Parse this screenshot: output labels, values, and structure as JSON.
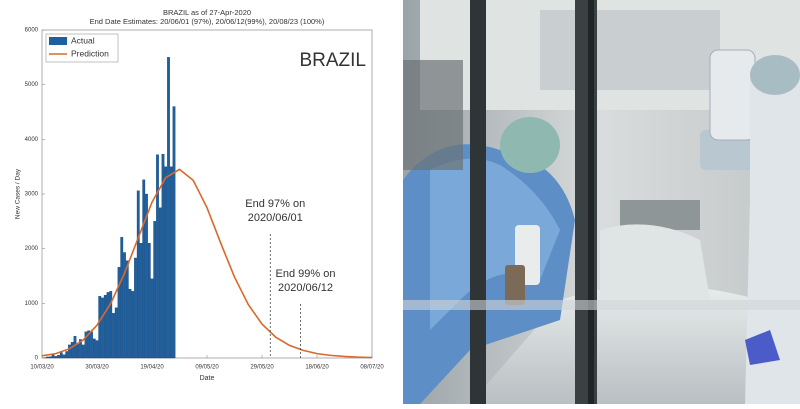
{
  "chart_data": {
    "type": "bar",
    "title": "BRAZIL as of 27-Apr-2020",
    "subtitle": "End Date Estimates: 20/06/01 (97%), 20/06/12(99%), 20/08/23 (100%)",
    "x_label": "Date",
    "y_label": "New Cases / Day",
    "country_label": "BRAZIL",
    "xlim": [
      "2020-03-10",
      "2020-07-08"
    ],
    "xticks": [
      {
        "value": "2020-03-10",
        "label": "10/03/20"
      },
      {
        "value": "2020-03-30",
        "label": "30/03/20"
      },
      {
        "value": "2020-04-19",
        "label": "19/04/20"
      },
      {
        "value": "2020-05-09",
        "label": "09/05/20"
      },
      {
        "value": "2020-05-29",
        "label": "29/05/20"
      },
      {
        "value": "2020-06-18",
        "label": "18/06/20"
      },
      {
        "value": "2020-07-08",
        "label": "08/07/20"
      }
    ],
    "ylim": [
      0,
      6000
    ],
    "yticks": [
      0,
      1000,
      2000,
      3000,
      4000,
      5000,
      6000
    ],
    "legend": "top-left",
    "series": [
      {
        "name": "Actual",
        "type": "bar",
        "color": "#1f5f9e",
        "x": [
          "2020-03-10",
          "2020-03-11",
          "2020-03-12",
          "2020-03-13",
          "2020-03-14",
          "2020-03-15",
          "2020-03-16",
          "2020-03-17",
          "2020-03-18",
          "2020-03-19",
          "2020-03-20",
          "2020-03-21",
          "2020-03-22",
          "2020-03-23",
          "2020-03-24",
          "2020-03-25",
          "2020-03-26",
          "2020-03-27",
          "2020-03-28",
          "2020-03-29",
          "2020-03-30",
          "2020-03-31",
          "2020-04-01",
          "2020-04-02",
          "2020-04-03",
          "2020-04-04",
          "2020-04-05",
          "2020-04-06",
          "2020-04-07",
          "2020-04-08",
          "2020-04-09",
          "2020-04-10",
          "2020-04-11",
          "2020-04-12",
          "2020-04-13",
          "2020-04-14",
          "2020-04-15",
          "2020-04-16",
          "2020-04-17",
          "2020-04-18",
          "2020-04-19",
          "2020-04-20",
          "2020-04-21",
          "2020-04-22",
          "2020-04-23",
          "2020-04-24",
          "2020-04-25",
          "2020-04-26",
          "2020-04-27"
        ],
        "values": [
          0,
          5,
          20,
          25,
          60,
          30,
          50,
          100,
          60,
          120,
          240,
          290,
          400,
          250,
          340,
          240,
          480,
          500,
          480,
          350,
          320,
          1130,
          1100,
          1150,
          1200,
          1220,
          820,
          920,
          1660,
          2210,
          1930,
          1780,
          1260,
          1220,
          1830,
          3060,
          2100,
          3260,
          3000,
          2100,
          1450,
          2500,
          3720,
          2750,
          3730,
          3500,
          5500,
          3500,
          4600
        ]
      },
      {
        "name": "Prediction",
        "type": "line",
        "color": "#d9682a",
        "x": [
          "2020-03-10",
          "2020-03-15",
          "2020-03-20",
          "2020-03-25",
          "2020-03-30",
          "2020-04-04",
          "2020-04-09",
          "2020-04-14",
          "2020-04-19",
          "2020-04-24",
          "2020-04-29",
          "2020-05-04",
          "2020-05-09",
          "2020-05-14",
          "2020-05-19",
          "2020-05-24",
          "2020-05-29",
          "2020-06-03",
          "2020-06-08",
          "2020-06-13",
          "2020-06-18",
          "2020-06-23",
          "2020-06-28",
          "2020-07-03",
          "2020-07-08"
        ],
        "values": [
          40,
          80,
          170,
          330,
          600,
          1000,
          1550,
          2200,
          2850,
          3300,
          3450,
          3250,
          2750,
          2100,
          1480,
          980,
          620,
          380,
          230,
          140,
          80,
          48,
          28,
          16,
          9
        ]
      }
    ],
    "annotations": [
      {
        "x": "2020-06-01",
        "lines": [
          "End 97% on",
          "2020/06/01"
        ]
      },
      {
        "x": "2020-06-12",
        "lines": [
          "End 99% on",
          "2020/06/12"
        ]
      }
    ]
  }
}
